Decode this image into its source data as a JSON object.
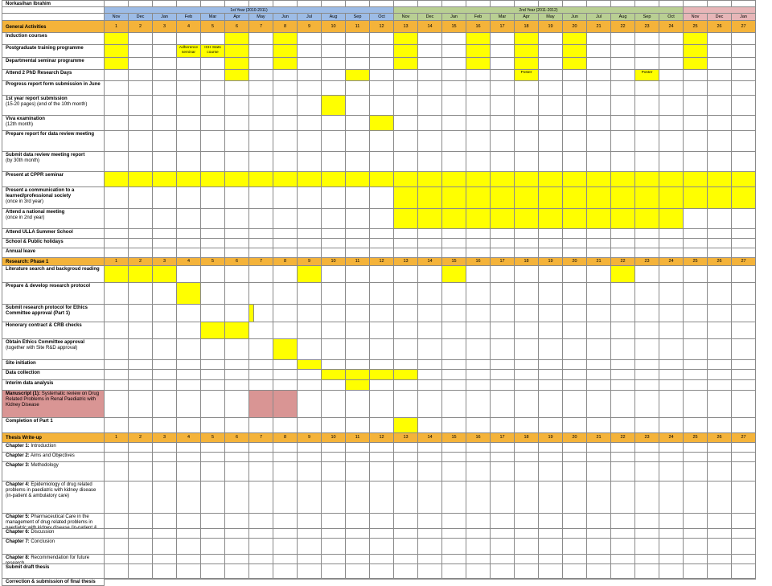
{
  "author": "Norkasihan Ibrahim",
  "years": [
    {
      "label": "1st Year (2010-2011)",
      "color": "#9dbce6"
    },
    {
      "label": "2nd Year (2011-2012)",
      "color": "#b9cf93"
    },
    {
      "label": "",
      "color": "#e7b6b8"
    }
  ],
  "months": [
    "Nov",
    "Dec",
    "Jan",
    "Feb",
    "Mar",
    "Apr",
    "May",
    "Jun",
    "Jul",
    "Aug",
    "Sep",
    "Oct",
    "Nov",
    "Dec",
    "Jan",
    "Feb",
    "Mar",
    "Apr",
    "May",
    "Jun",
    "Jul",
    "Aug",
    "Sep",
    "Oct",
    "Nov",
    "Dec",
    "Jan"
  ],
  "colors": {
    "orange": "#f4b33a",
    "yellow": "#ffff00",
    "pink": "#d99594",
    "grid": "#8a8a8a",
    "divider": "#6a3fb0"
  },
  "notes": {
    "adherence": "Adherence seminar",
    "ich": "ICH Stats course",
    "poster": "Poster"
  },
  "rows": [
    {
      "type": "header",
      "label": "General Activities"
    },
    {
      "type": "task",
      "label": "Induction courses"
    },
    {
      "type": "task",
      "label": "Postgraduate training programme"
    },
    {
      "type": "task",
      "label": "Departmental seminar programme"
    },
    {
      "type": "task",
      "label": "Attend 2 PhD Research Days"
    },
    {
      "type": "task",
      "label": "Progress report form submission in June"
    },
    {
      "type": "task",
      "label": "1st year report submission",
      "sub": "(15-20 pages) (end of the 10th month)"
    },
    {
      "type": "task",
      "label": "Viva examination",
      "sub": "(12th month)"
    },
    {
      "type": "task",
      "label": "Prepare report for data review meeting"
    },
    {
      "type": "task",
      "label": "Submit data review meeting report",
      "sub": "(by 30th month)"
    },
    {
      "type": "task",
      "label": "Present at CPPR seminar"
    },
    {
      "type": "task",
      "label": "Present a communication to a learned/professional society",
      "sub": "(once in 3rd year)"
    },
    {
      "type": "task",
      "label": "Attend a national meeting",
      "sub": "(once in 2nd year)"
    },
    {
      "type": "task",
      "label": "Attend ULLA Summer School"
    },
    {
      "type": "task",
      "label": "School & Public holidays"
    },
    {
      "type": "task",
      "label": "Annual leave"
    },
    {
      "type": "header",
      "label": "Research: Phase 1"
    },
    {
      "type": "task",
      "label": "Literature search and backgroud reading"
    },
    {
      "type": "task",
      "label": "Prepare & develop research protocol"
    },
    {
      "type": "task",
      "label": "Submit research protocol for Ethics Committee approval (Part 1)"
    },
    {
      "type": "task",
      "label": "Honorary contract & CRB checks"
    },
    {
      "type": "task",
      "label": "Obtain Ethics Committee approval",
      "sub": "(together with Site R&D approval)"
    },
    {
      "type": "task",
      "label": "Site initiation"
    },
    {
      "type": "task",
      "label": "Data collection"
    },
    {
      "type": "task",
      "label": "Interim data analysis"
    },
    {
      "type": "task",
      "label": "Manuscript (1):",
      "sub": "Systematic review on Drug Related Problems in Renal Paediatric with Kidney Disease",
      "pink": true
    },
    {
      "type": "task",
      "label": "Completion of Part 1"
    },
    {
      "type": "header",
      "label": "Thesis Write-up"
    },
    {
      "type": "task",
      "label": "Chapter 1:",
      "sub": "Introduction"
    },
    {
      "type": "task",
      "label": "Chapter 2:",
      "sub": "Aims and Objectives"
    },
    {
      "type": "task",
      "label": "Chapter 3:",
      "sub": "Methodology"
    },
    {
      "type": "task",
      "label": "Chapter 4:",
      "sub": "Epidemiology of drug related problems in paediatric with kidney disease (in-patient & ambulatory care)"
    },
    {
      "type": "task",
      "label": "Chapter 5:",
      "sub": "Pharmaceutical Care in the management of drug related problems in paediatric with kidney disease (in-patient & ambulatory care)"
    },
    {
      "type": "task",
      "label": "Chapter 6:",
      "sub": "Discussion"
    },
    {
      "type": "task",
      "label": "Chapter 7:",
      "sub": "Conclusion"
    },
    {
      "type": "task",
      "label": "Chapter 8:",
      "sub": "Recommendation for future research"
    },
    {
      "type": "task",
      "label": "Submit draft thesis"
    },
    {
      "type": "task",
      "label": "Correction & submission of final thesis"
    }
  ],
  "fills": [
    {
      "row": 1,
      "months": [
        1,
        6,
        8,
        13,
        16,
        18,
        20,
        25
      ],
      "color": "yellow"
    },
    {
      "row": 2,
      "months": [
        1,
        6,
        8,
        13,
        16,
        18,
        20,
        25
      ],
      "color": "yellow"
    },
    {
      "row": 2,
      "months": [
        4
      ],
      "color": "yellow",
      "note": "adherence"
    },
    {
      "row": 2,
      "months": [
        5
      ],
      "color": "yellow",
      "note": "ich"
    },
    {
      "row": 3,
      "months": [
        1,
        6,
        8,
        13,
        16,
        18,
        20,
        25
      ],
      "color": "yellow"
    },
    {
      "row": 4,
      "months": [
        6,
        11
      ],
      "color": "yellow"
    },
    {
      "row": 4,
      "months": [
        18,
        23
      ],
      "color": "yellow",
      "note": "poster"
    },
    {
      "row": 6,
      "months": [
        10
      ],
      "color": "yellow"
    },
    {
      "row": 7,
      "months": [
        12
      ],
      "color": "yellow"
    },
    {
      "row": 10,
      "months": [
        1,
        2,
        3,
        4,
        5,
        6,
        7,
        8,
        9,
        10,
        11,
        12,
        13,
        14,
        15,
        16,
        17,
        18,
        19,
        20,
        21,
        22,
        23,
        24,
        25,
        26,
        27
      ],
      "color": "yellow"
    },
    {
      "row": 11,
      "months": [
        13,
        14,
        15,
        16,
        17,
        18,
        19,
        20,
        21,
        22,
        23,
        24,
        25,
        26,
        27
      ],
      "color": "yellow"
    },
    {
      "row": 12,
      "months": [
        13,
        14,
        15,
        16,
        17,
        18,
        19,
        20,
        21,
        22,
        23,
        24
      ],
      "color": "yellow"
    },
    {
      "row": 17,
      "months": [
        1,
        2,
        3,
        9,
        15,
        22
      ],
      "color": "yellow"
    },
    {
      "row": 18,
      "months": [
        4
      ],
      "color": "yellow"
    },
    {
      "row": 19,
      "months": [
        7
      ],
      "color": "yellow",
      "partial": true
    },
    {
      "row": 20,
      "months": [
        5,
        6
      ],
      "color": "yellow"
    },
    {
      "row": 21,
      "months": [
        8
      ],
      "color": "yellow"
    },
    {
      "row": 22,
      "months": [
        9
      ],
      "color": "yellow"
    },
    {
      "row": 23,
      "months": [
        10,
        11,
        12,
        13
      ],
      "color": "yellow"
    },
    {
      "row": 24,
      "months": [
        11
      ],
      "color": "yellow"
    },
    {
      "row": 25,
      "months": [
        7,
        8
      ],
      "color": "pink"
    },
    {
      "row": 26,
      "months": [
        13
      ],
      "color": "yellow"
    }
  ]
}
